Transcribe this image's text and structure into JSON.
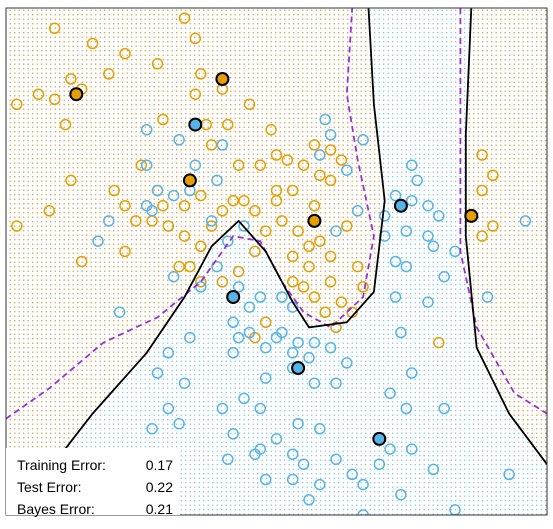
{
  "chart_data": {
    "type": "scatter",
    "xlim": [
      0,
      1
    ],
    "ylim": [
      0,
      1
    ],
    "grid": false,
    "class_colors": {
      "orange": "#e69f00",
      "blue": "#56b4e9"
    },
    "boundary_colors": {
      "model": "#000000",
      "bayes": "#9a2fd3"
    },
    "stats": [
      {
        "label": "Training Error:",
        "value": "0.17"
      },
      {
        "label": "Test Error:",
        "value": "0.22"
      },
      {
        "label": "Bayes Error:",
        "value": "0.21"
      }
    ],
    "model_boundary": [
      [
        0.02,
        0.0
      ],
      [
        0.08,
        0.09
      ],
      [
        0.16,
        0.2
      ],
      [
        0.26,
        0.32
      ],
      [
        0.33,
        0.43
      ],
      [
        0.38,
        0.53
      ],
      [
        0.43,
        0.58
      ],
      [
        0.48,
        0.52
      ],
      [
        0.53,
        0.42
      ],
      [
        0.56,
        0.37
      ],
      [
        0.63,
        0.38
      ],
      [
        0.68,
        0.44
      ],
      [
        0.7,
        0.62
      ],
      [
        0.68,
        0.81
      ],
      [
        0.67,
        1.0
      ]
    ],
    "model_boundary_right": [
      [
        0.86,
        1.0
      ],
      [
        0.85,
        0.75
      ],
      [
        0.85,
        0.55
      ],
      [
        0.87,
        0.33
      ],
      [
        0.93,
        0.2
      ],
      [
        1.0,
        0.1
      ]
    ],
    "bayes_boundary": [
      [
        0.0,
        0.19
      ],
      [
        0.08,
        0.25
      ],
      [
        0.18,
        0.34
      ],
      [
        0.28,
        0.39
      ],
      [
        0.36,
        0.46
      ],
      [
        0.42,
        0.55
      ],
      [
        0.47,
        0.54
      ],
      [
        0.51,
        0.46
      ],
      [
        0.55,
        0.4
      ],
      [
        0.6,
        0.37
      ],
      [
        0.66,
        0.43
      ],
      [
        0.68,
        0.55
      ],
      [
        0.65,
        0.7
      ],
      [
        0.63,
        0.83
      ],
      [
        0.64,
        1.0
      ]
    ],
    "bayes_boundary_right": [
      [
        0.84,
        1.0
      ],
      [
        0.84,
        0.7
      ],
      [
        0.84,
        0.52
      ],
      [
        0.87,
        0.37
      ],
      [
        0.94,
        0.24
      ],
      [
        1.0,
        0.2
      ]
    ],
    "orange_points": [
      [
        0.09,
        0.96
      ],
      [
        0.16,
        0.93
      ],
      [
        0.33,
        0.98
      ],
      [
        0.35,
        0.94
      ],
      [
        0.22,
        0.91
      ],
      [
        0.28,
        0.89
      ],
      [
        0.12,
        0.86
      ],
      [
        0.19,
        0.87
      ],
      [
        0.02,
        0.81
      ],
      [
        0.06,
        0.83
      ],
      [
        0.09,
        0.82
      ],
      [
        0.14,
        0.84
      ],
      [
        0.35,
        0.83
      ],
      [
        0.36,
        0.87
      ],
      [
        0.4,
        0.84
      ],
      [
        0.37,
        0.77
      ],
      [
        0.41,
        0.77
      ],
      [
        0.45,
        0.81
      ],
      [
        0.38,
        0.73
      ],
      [
        0.43,
        0.69
      ],
      [
        0.47,
        0.69
      ],
      [
        0.5,
        0.71
      ],
      [
        0.52,
        0.7
      ],
      [
        0.55,
        0.69
      ],
      [
        0.57,
        0.73
      ],
      [
        0.6,
        0.72
      ],
      [
        0.62,
        0.7
      ],
      [
        0.58,
        0.67
      ],
      [
        0.53,
        0.64
      ],
      [
        0.5,
        0.62
      ],
      [
        0.46,
        0.6
      ],
      [
        0.44,
        0.62
      ],
      [
        0.4,
        0.6
      ],
      [
        0.38,
        0.57
      ],
      [
        0.36,
        0.53
      ],
      [
        0.33,
        0.55
      ],
      [
        0.3,
        0.57
      ],
      [
        0.27,
        0.58
      ],
      [
        0.24,
        0.58
      ],
      [
        0.22,
        0.61
      ],
      [
        0.29,
        0.61
      ],
      [
        0.33,
        0.61
      ],
      [
        0.36,
        0.63
      ],
      [
        0.42,
        0.62
      ],
      [
        0.51,
        0.58
      ],
      [
        0.54,
        0.56
      ],
      [
        0.56,
        0.53
      ],
      [
        0.58,
        0.54
      ],
      [
        0.6,
        0.51
      ],
      [
        0.56,
        0.49
      ],
      [
        0.53,
        0.51
      ],
      [
        0.55,
        0.45
      ],
      [
        0.57,
        0.43
      ],
      [
        0.6,
        0.46
      ],
      [
        0.62,
        0.42
      ],
      [
        0.59,
        0.4
      ],
      [
        0.61,
        0.37
      ],
      [
        0.64,
        0.4
      ],
      [
        0.66,
        0.45
      ],
      [
        0.65,
        0.49
      ],
      [
        0.63,
        0.57
      ],
      [
        0.6,
        0.66
      ],
      [
        0.57,
        0.61
      ],
      [
        0.46,
        0.52
      ],
      [
        0.43,
        0.48
      ],
      [
        0.4,
        0.46
      ],
      [
        0.36,
        0.46
      ],
      [
        0.34,
        0.49
      ],
      [
        0.32,
        0.49
      ],
      [
        0.14,
        0.5
      ],
      [
        0.22,
        0.52
      ],
      [
        0.02,
        0.57
      ],
      [
        0.08,
        0.6
      ],
      [
        0.12,
        0.66
      ],
      [
        0.2,
        0.64
      ],
      [
        0.28,
        0.64
      ],
      [
        0.48,
        0.38
      ],
      [
        0.46,
        0.35
      ],
      [
        0.8,
        0.34
      ],
      [
        0.88,
        0.64
      ],
      [
        0.9,
        0.67
      ],
      [
        0.88,
        0.71
      ],
      [
        0.9,
        0.57
      ],
      [
        0.88,
        0.55
      ],
      [
        0.53,
        0.46
      ],
      [
        0.29,
        0.78
      ],
      [
        0.11,
        0.77
      ],
      [
        0.25,
        0.69
      ],
      [
        0.49,
        0.76
      ],
      [
        0.48,
        0.56
      ],
      [
        0.5,
        0.64
      ]
    ],
    "blue_points": [
      [
        0.26,
        0.76
      ],
      [
        0.32,
        0.74
      ],
      [
        0.4,
        0.73
      ],
      [
        0.35,
        0.69
      ],
      [
        0.39,
        0.66
      ],
      [
        0.26,
        0.69
      ],
      [
        0.28,
        0.64
      ],
      [
        0.26,
        0.61
      ],
      [
        0.31,
        0.63
      ],
      [
        0.34,
        0.64
      ],
      [
        0.38,
        0.58
      ],
      [
        0.41,
        0.54
      ],
      [
        0.44,
        0.57
      ],
      [
        0.39,
        0.49
      ],
      [
        0.36,
        0.45
      ],
      [
        0.43,
        0.45
      ],
      [
        0.45,
        0.41
      ],
      [
        0.47,
        0.43
      ],
      [
        0.51,
        0.43
      ],
      [
        0.53,
        0.41
      ],
      [
        0.42,
        0.38
      ],
      [
        0.43,
        0.35
      ],
      [
        0.45,
        0.36
      ],
      [
        0.48,
        0.33
      ],
      [
        0.51,
        0.36
      ],
      [
        0.53,
        0.32
      ],
      [
        0.54,
        0.34
      ],
      [
        0.57,
        0.34
      ],
      [
        0.6,
        0.33
      ],
      [
        0.63,
        0.3
      ],
      [
        0.61,
        0.26
      ],
      [
        0.57,
        0.26
      ],
      [
        0.53,
        0.29
      ],
      [
        0.48,
        0.27
      ],
      [
        0.44,
        0.23
      ],
      [
        0.4,
        0.21
      ],
      [
        0.33,
        0.26
      ],
      [
        0.3,
        0.21
      ],
      [
        0.27,
        0.17
      ],
      [
        0.42,
        0.16
      ],
      [
        0.46,
        0.12
      ],
      [
        0.5,
        0.15
      ],
      [
        0.53,
        0.12
      ],
      [
        0.55,
        0.1
      ],
      [
        0.58,
        0.06
      ],
      [
        0.61,
        0.11
      ],
      [
        0.64,
        0.08
      ],
      [
        0.66,
        0.06
      ],
      [
        0.69,
        0.1
      ],
      [
        0.71,
        0.13
      ],
      [
        0.75,
        0.13
      ],
      [
        0.74,
        0.21
      ],
      [
        0.75,
        0.28
      ],
      [
        0.73,
        0.36
      ],
      [
        0.72,
        0.43
      ],
      [
        0.72,
        0.5
      ],
      [
        0.7,
        0.55
      ],
      [
        0.7,
        0.59
      ],
      [
        0.72,
        0.63
      ],
      [
        0.75,
        0.62
      ],
      [
        0.74,
        0.56
      ],
      [
        0.74,
        0.49
      ],
      [
        0.79,
        0.53
      ],
      [
        0.81,
        0.47
      ],
      [
        0.78,
        0.42
      ],
      [
        0.75,
        0.69
      ],
      [
        0.76,
        0.66
      ],
      [
        0.78,
        0.61
      ],
      [
        0.78,
        0.55
      ],
      [
        0.8,
        0.59
      ],
      [
        0.83,
        0.52
      ],
      [
        0.89,
        0.43
      ],
      [
        0.96,
        0.58
      ],
      [
        0.65,
        0.6
      ],
      [
        0.63,
        0.68
      ],
      [
        0.6,
        0.75
      ],
      [
        0.59,
        0.78
      ],
      [
        0.58,
        0.71
      ],
      [
        0.66,
        0.74
      ],
      [
        0.61,
        0.56
      ],
      [
        0.27,
        0.6
      ],
      [
        0.19,
        0.58
      ],
      [
        0.17,
        0.54
      ],
      [
        0.21,
        0.4
      ],
      [
        0.31,
        0.47
      ],
      [
        0.34,
        0.35
      ],
      [
        0.3,
        0.32
      ],
      [
        0.28,
        0.28
      ],
      [
        0.32,
        0.18
      ],
      [
        0.41,
        0.11
      ],
      [
        0.48,
        0.07
      ],
      [
        0.56,
        0.03
      ],
      [
        0.66,
        0.0
      ],
      [
        0.73,
        0.04
      ],
      [
        0.79,
        0.09
      ],
      [
        0.83,
        0.01
      ],
      [
        0.93,
        0.08
      ],
      [
        0.81,
        0.21
      ],
      [
        0.71,
        0.24
      ],
      [
        0.58,
        0.17
      ],
      [
        0.54,
        0.18
      ],
      [
        0.47,
        0.21
      ],
      [
        0.42,
        0.32
      ],
      [
        0.5,
        0.35
      ],
      [
        0.56,
        0.31
      ],
      [
        0.47,
        0.13
      ],
      [
        0.53,
        0.07
      ]
    ],
    "highlight_points": [
      {
        "class": "orange",
        "x": 0.13,
        "y": 0.83
      },
      {
        "class": "orange",
        "x": 0.4,
        "y": 0.86
      },
      {
        "class": "orange",
        "x": 0.34,
        "y": 0.66
      },
      {
        "class": "orange",
        "x": 0.57,
        "y": 0.58
      },
      {
        "class": "orange",
        "x": 0.86,
        "y": 0.59
      },
      {
        "class": "blue",
        "x": 0.35,
        "y": 0.77
      },
      {
        "class": "blue",
        "x": 0.73,
        "y": 0.61
      },
      {
        "class": "blue",
        "x": 0.42,
        "y": 0.43
      },
      {
        "class": "blue",
        "x": 0.54,
        "y": 0.29
      },
      {
        "class": "blue",
        "x": 0.69,
        "y": 0.15
      }
    ]
  }
}
